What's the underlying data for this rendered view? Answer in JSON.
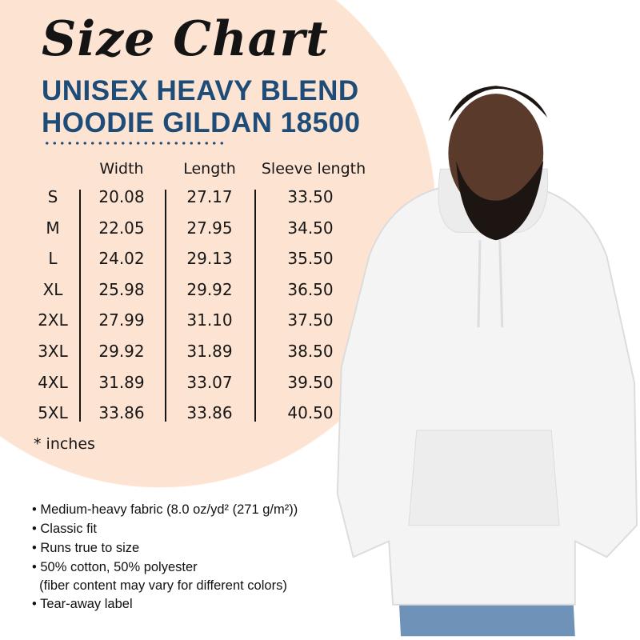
{
  "title": "Size Chart",
  "subtitle_line1": "UNISEX HEAVY BLEND",
  "subtitle_line2": "HOODIE GILDAN 18500",
  "table": {
    "headers": [
      "Width",
      "Length",
      "Sleeve length"
    ],
    "rows": [
      {
        "size": "S",
        "width": "20.08",
        "length": "27.17",
        "sleeve": "33.50"
      },
      {
        "size": "M",
        "width": "22.05",
        "length": "27.95",
        "sleeve": "34.50"
      },
      {
        "size": "L",
        "width": "24.02",
        "length": "29.13",
        "sleeve": "35.50"
      },
      {
        "size": "XL",
        "width": "25.98",
        "length": "29.92",
        "sleeve": "36.50"
      },
      {
        "size": "2XL",
        "width": "27.99",
        "length": "31.10",
        "sleeve": "37.50"
      },
      {
        "size": "3XL",
        "width": "29.92",
        "length": "31.89",
        "sleeve": "38.50"
      },
      {
        "size": "4XL",
        "width": "31.89",
        "length": "33.07",
        "sleeve": "39.50"
      },
      {
        "size": "5XL",
        "width": "33.86",
        "length": "33.86",
        "sleeve": "40.50"
      }
    ]
  },
  "unit_note": "* inches",
  "features": [
    "• Medium-heavy fabric (8.0 oz/yd² (271 g/m²))",
    "• Classic fit",
    "• Runs true to size",
    "• 50% cotton, 50% polyester",
    "  (fiber content may vary for different colors)",
    "• Tear-away label"
  ],
  "colors": {
    "background_circle": "#fde3d2",
    "subtitle": "#1e4c78",
    "hoodie": "#f4f4f4",
    "jeans": "#6f93b8"
  }
}
